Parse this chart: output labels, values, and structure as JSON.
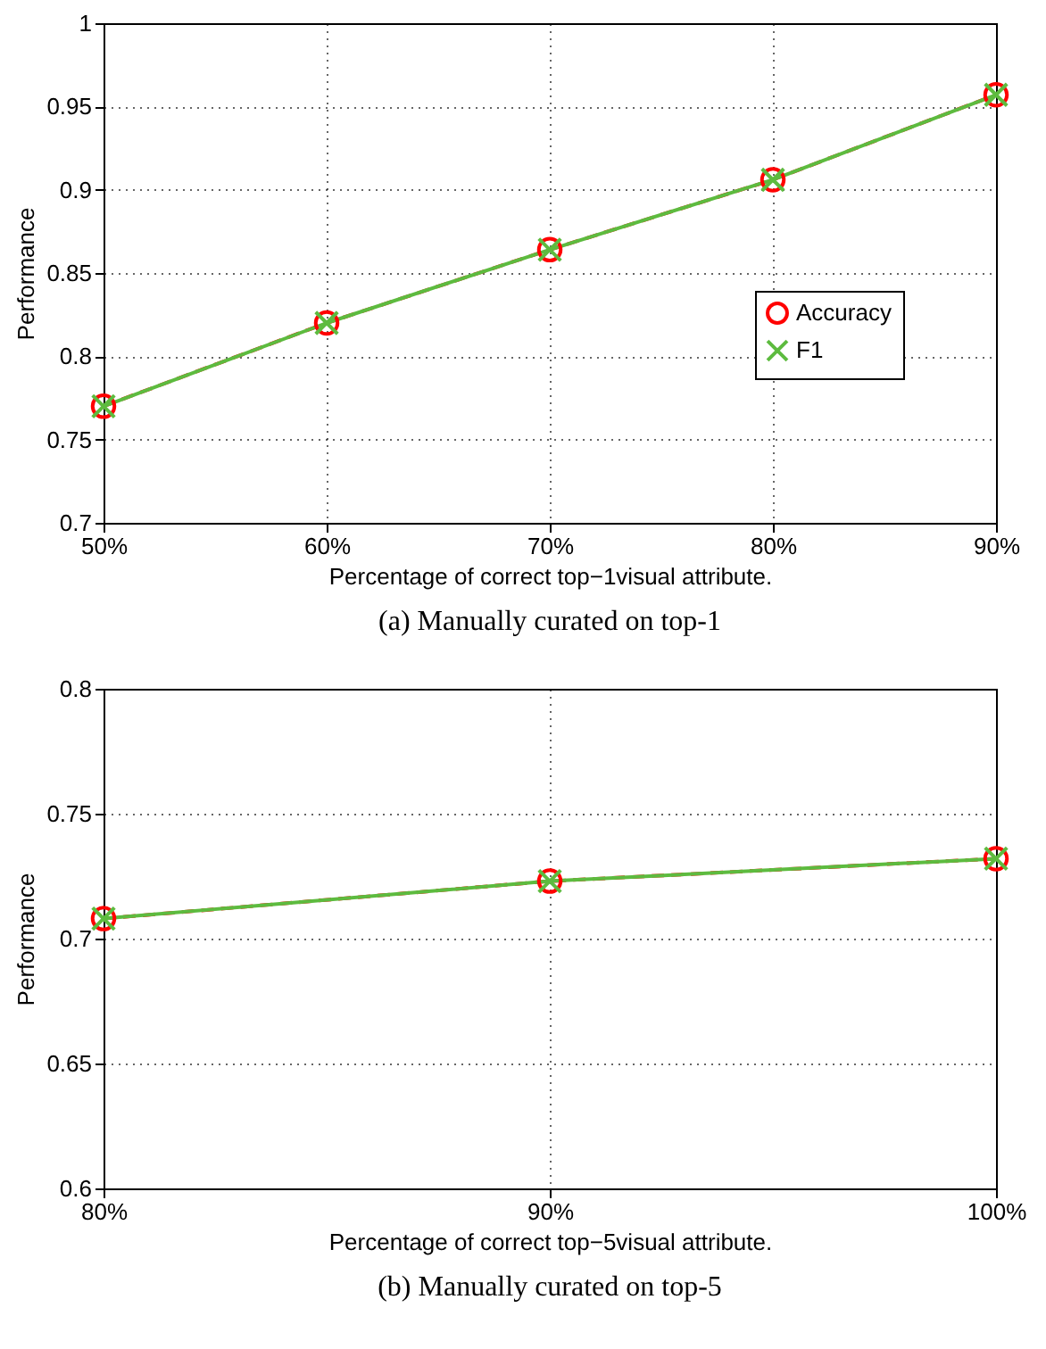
{
  "chart_data": [
    {
      "type": "line",
      "title": "(a)  Manually curated on top-1",
      "xlabel": "Percentage of correct top−1visual attribute.",
      "ylabel": "Performance",
      "x": [
        50,
        60,
        70,
        80,
        90
      ],
      "xlim": [
        50,
        90
      ],
      "xticks": [
        {
          "value": 50,
          "label": "50%"
        },
        {
          "value": 60,
          "label": "60%"
        },
        {
          "value": 70,
          "label": "70%"
        },
        {
          "value": 80,
          "label": "80%"
        },
        {
          "value": 90,
          "label": "90%"
        }
      ],
      "ylim": [
        0.7,
        1
      ],
      "yticks": [
        0.7,
        0.75,
        0.8,
        0.85,
        0.9,
        0.95,
        1
      ],
      "grid": true,
      "legend": "right",
      "series": [
        {
          "name": "Accuracy",
          "color": "#ff0000",
          "marker": "circle",
          "line_style": "dashed",
          "values": [
            0.77,
            0.82,
            0.864,
            0.906,
            0.957
          ]
        },
        {
          "name": "F1",
          "color": "#5dbb3f",
          "marker": "cross",
          "line_style": "solid",
          "values": [
            0.77,
            0.82,
            0.864,
            0.906,
            0.957
          ]
        }
      ]
    },
    {
      "type": "line",
      "title": "(b)  Manually curated on top-5",
      "xlabel": "Percentage of correct top−5visual attribute.",
      "ylabel": "Performance",
      "x": [
        80,
        90,
        100
      ],
      "xlim": [
        80,
        100
      ],
      "xticks": [
        {
          "value": 80,
          "label": "80%"
        },
        {
          "value": 90,
          "label": "90%"
        },
        {
          "value": 100,
          "label": "100%"
        }
      ],
      "ylim": [
        0.6,
        0.8
      ],
      "yticks": [
        0.6,
        0.65,
        0.7,
        0.75,
        0.8
      ],
      "grid": true,
      "legend": "right",
      "series": [
        {
          "name": "Accuracy",
          "color": "#ff0000",
          "marker": "circle",
          "line_style": "dashed",
          "values": [
            0.708,
            0.723,
            0.732
          ]
        },
        {
          "name": "F1",
          "color": "#5dbb3f",
          "marker": "cross",
          "line_style": "solid",
          "values": [
            0.708,
            0.723,
            0.732
          ]
        }
      ]
    }
  ]
}
